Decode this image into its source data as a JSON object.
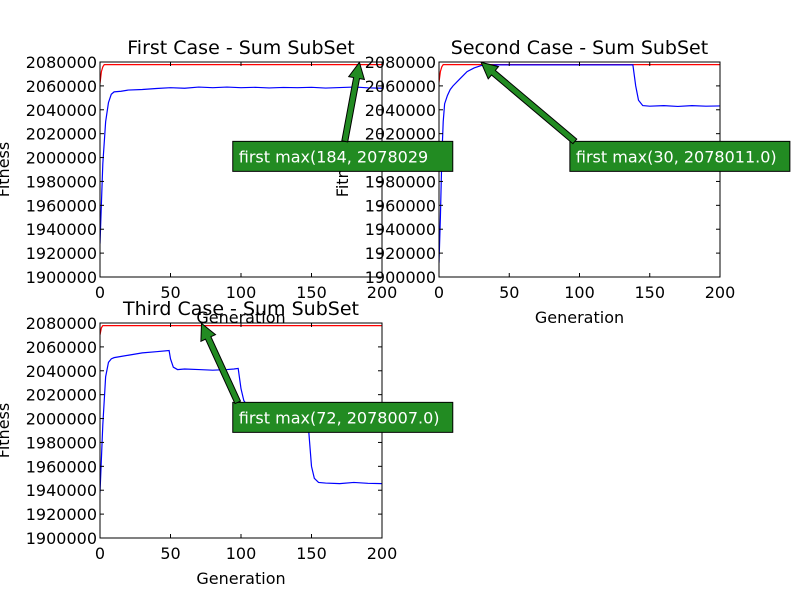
{
  "chart_data": [
    {
      "type": "line",
      "title": "First Case - Sum SubSet",
      "xlabel": "Generation",
      "ylabel": "Fitness",
      "xlim": [
        0,
        200
      ],
      "ylim": [
        1900000,
        2080000
      ],
      "xticks": [
        0,
        50,
        100,
        150,
        200
      ],
      "yticks": [
        1900000,
        1920000,
        1940000,
        1960000,
        1980000,
        2000000,
        2020000,
        2040000,
        2060000,
        2080000
      ],
      "series": [
        {
          "color": "#ff0000",
          "x": [
            0,
            1,
            2,
            3,
            200
          ],
          "values": [
            2062000,
            2072000,
            2076000,
            2077800,
            2077800
          ]
        },
        {
          "color": "#0000ff",
          "x": [
            0,
            2,
            4,
            6,
            8,
            10,
            15,
            20,
            30,
            40,
            50,
            60,
            70,
            80,
            90,
            100,
            110,
            120,
            130,
            140,
            150,
            160,
            170,
            180,
            184,
            190,
            200
          ],
          "values": [
            1928000,
            1995000,
            2030000,
            2046000,
            2053000,
            2055000,
            2055500,
            2056500,
            2057000,
            2057800,
            2058500,
            2058000,
            2059000,
            2058500,
            2059000,
            2058500,
            2058800,
            2058300,
            2058700,
            2058500,
            2058800,
            2058200,
            2058600,
            2059000,
            2058800,
            2058400,
            2058000
          ]
        }
      ],
      "annotation": {
        "text": "first max(184, 2078029",
        "point": [
          184,
          2078029
        ],
        "text_at": [
          97,
          2001000
        ],
        "color": "#228b22"
      }
    },
    {
      "type": "line",
      "title": "Second Case - Sum SubSet",
      "xlabel": "Generation",
      "ylabel": "Fitness",
      "xlim": [
        0,
        200
      ],
      "ylim": [
        1900000,
        2080000
      ],
      "xticks": [
        0,
        50,
        100,
        150,
        200
      ],
      "yticks": [
        1900000,
        1920000,
        1940000,
        1960000,
        1980000,
        2000000,
        2020000,
        2040000,
        2060000,
        2080000
      ],
      "series": [
        {
          "color": "#ff0000",
          "x": [
            0,
            1,
            2,
            3,
            200
          ],
          "values": [
            2063000,
            2072000,
            2076000,
            2077800,
            2077800
          ]
        },
        {
          "color": "#0000ff",
          "x": [
            0,
            1,
            2,
            3,
            4,
            6,
            8,
            10,
            15,
            20,
            25,
            30,
            35,
            40,
            60,
            80,
            100,
            120,
            138,
            140,
            142,
            145,
            150,
            160,
            170,
            180,
            190,
            200
          ],
          "values": [
            1912000,
            1950000,
            2000000,
            2030000,
            2045000,
            2052000,
            2057000,
            2060000,
            2066000,
            2072000,
            2075000,
            2077000,
            2077500,
            2077600,
            2077600,
            2077600,
            2077600,
            2077600,
            2077600,
            2060000,
            2048000,
            2043500,
            2043000,
            2043500,
            2042800,
            2043500,
            2043000,
            2043200
          ]
        }
      ],
      "annotation": {
        "text": "first max(30, 2078011.0)",
        "point": [
          30,
          2078011
        ],
        "text_at": [
          96,
          2001000
        ],
        "color": "#228b22"
      }
    },
    {
      "type": "line",
      "title": "Third Case - Sum SubSet",
      "xlabel": "Generation",
      "ylabel": "Fitness",
      "xlim": [
        0,
        200
      ],
      "ylim": [
        1900000,
        2080000
      ],
      "xticks": [
        0,
        50,
        100,
        150,
        200
      ],
      "yticks": [
        1900000,
        1920000,
        1940000,
        1960000,
        1980000,
        2000000,
        2020000,
        2040000,
        2060000,
        2080000
      ],
      "series": [
        {
          "color": "#ff0000",
          "x": [
            0,
            1,
            2,
            200
          ],
          "values": [
            2070000,
            2076000,
            2077800,
            2077800
          ]
        },
        {
          "color": "#0000ff",
          "x": [
            0,
            2,
            4,
            6,
            8,
            10,
            20,
            30,
            40,
            49,
            50,
            52,
            55,
            60,
            70,
            80,
            90,
            95,
            98,
            100,
            102,
            105,
            110,
            120,
            130,
            140,
            145,
            148,
            150,
            152,
            155,
            160,
            170,
            180,
            190,
            200
          ],
          "values": [
            1938000,
            1995000,
            2035000,
            2047000,
            2050000,
            2051000,
            2053000,
            2055000,
            2056000,
            2057000,
            2050000,
            2043000,
            2041000,
            2041500,
            2041000,
            2040500,
            2041000,
            2041500,
            2042000,
            2025000,
            2015000,
            2010000,
            2008000,
            2007500,
            2007000,
            2006500,
            2005000,
            1990000,
            1960000,
            1950000,
            1946500,
            1946000,
            1945500,
            1946500,
            1945800,
            1945500
          ]
        }
      ],
      "annotation": {
        "text": "first max(72, 2078007.0)",
        "point": [
          72,
          2078007
        ],
        "text_at": [
          97,
          2001000
        ],
        "color": "#228b22"
      }
    }
  ]
}
